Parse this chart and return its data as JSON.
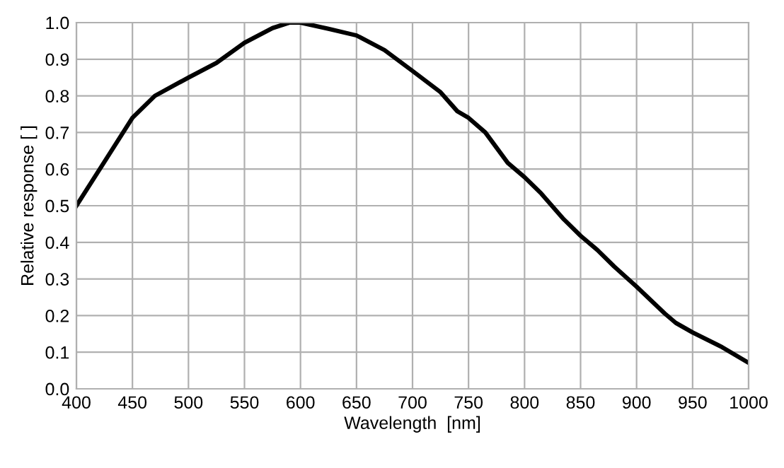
{
  "chart_data": {
    "type": "line",
    "xlabel": "Wavelength  [nm]",
    "ylabel": "Relative response [ ]",
    "xlim": [
      400,
      1000
    ],
    "xticks": [
      400,
      450,
      500,
      550,
      600,
      650,
      700,
      750,
      800,
      850,
      900,
      950,
      1000
    ],
    "ylim": [
      0,
      1
    ],
    "yticks": [
      {
        "value": 0,
        "label": "0.0"
      },
      0.1,
      0.2,
      0.3,
      0.4,
      0.5,
      0.6,
      0.7,
      0.8,
      0.9,
      {
        "value": 1,
        "label": "1.0"
      }
    ],
    "grid": true,
    "series": [
      {
        "color": "#000000",
        "x": [
          400,
          425,
          450,
          470,
          500,
          525,
          550,
          575,
          590,
          600,
          625,
          650,
          675,
          700,
          725,
          740,
          750,
          765,
          785,
          800,
          815,
          835,
          850,
          865,
          880,
          900,
          925,
          935,
          950,
          975,
          1000
        ],
        "values": [
          0.5,
          0.62,
          0.74,
          0.8,
          0.85,
          0.89,
          0.945,
          0.985,
          1.0,
          1.0,
          0.983,
          0.965,
          0.925,
          0.868,
          0.81,
          0.758,
          0.74,
          0.7,
          0.617,
          0.578,
          0.533,
          0.463,
          0.418,
          0.379,
          0.334,
          0.279,
          0.206,
          0.18,
          0.154,
          0.116,
          0.071
        ]
      }
    ]
  }
}
